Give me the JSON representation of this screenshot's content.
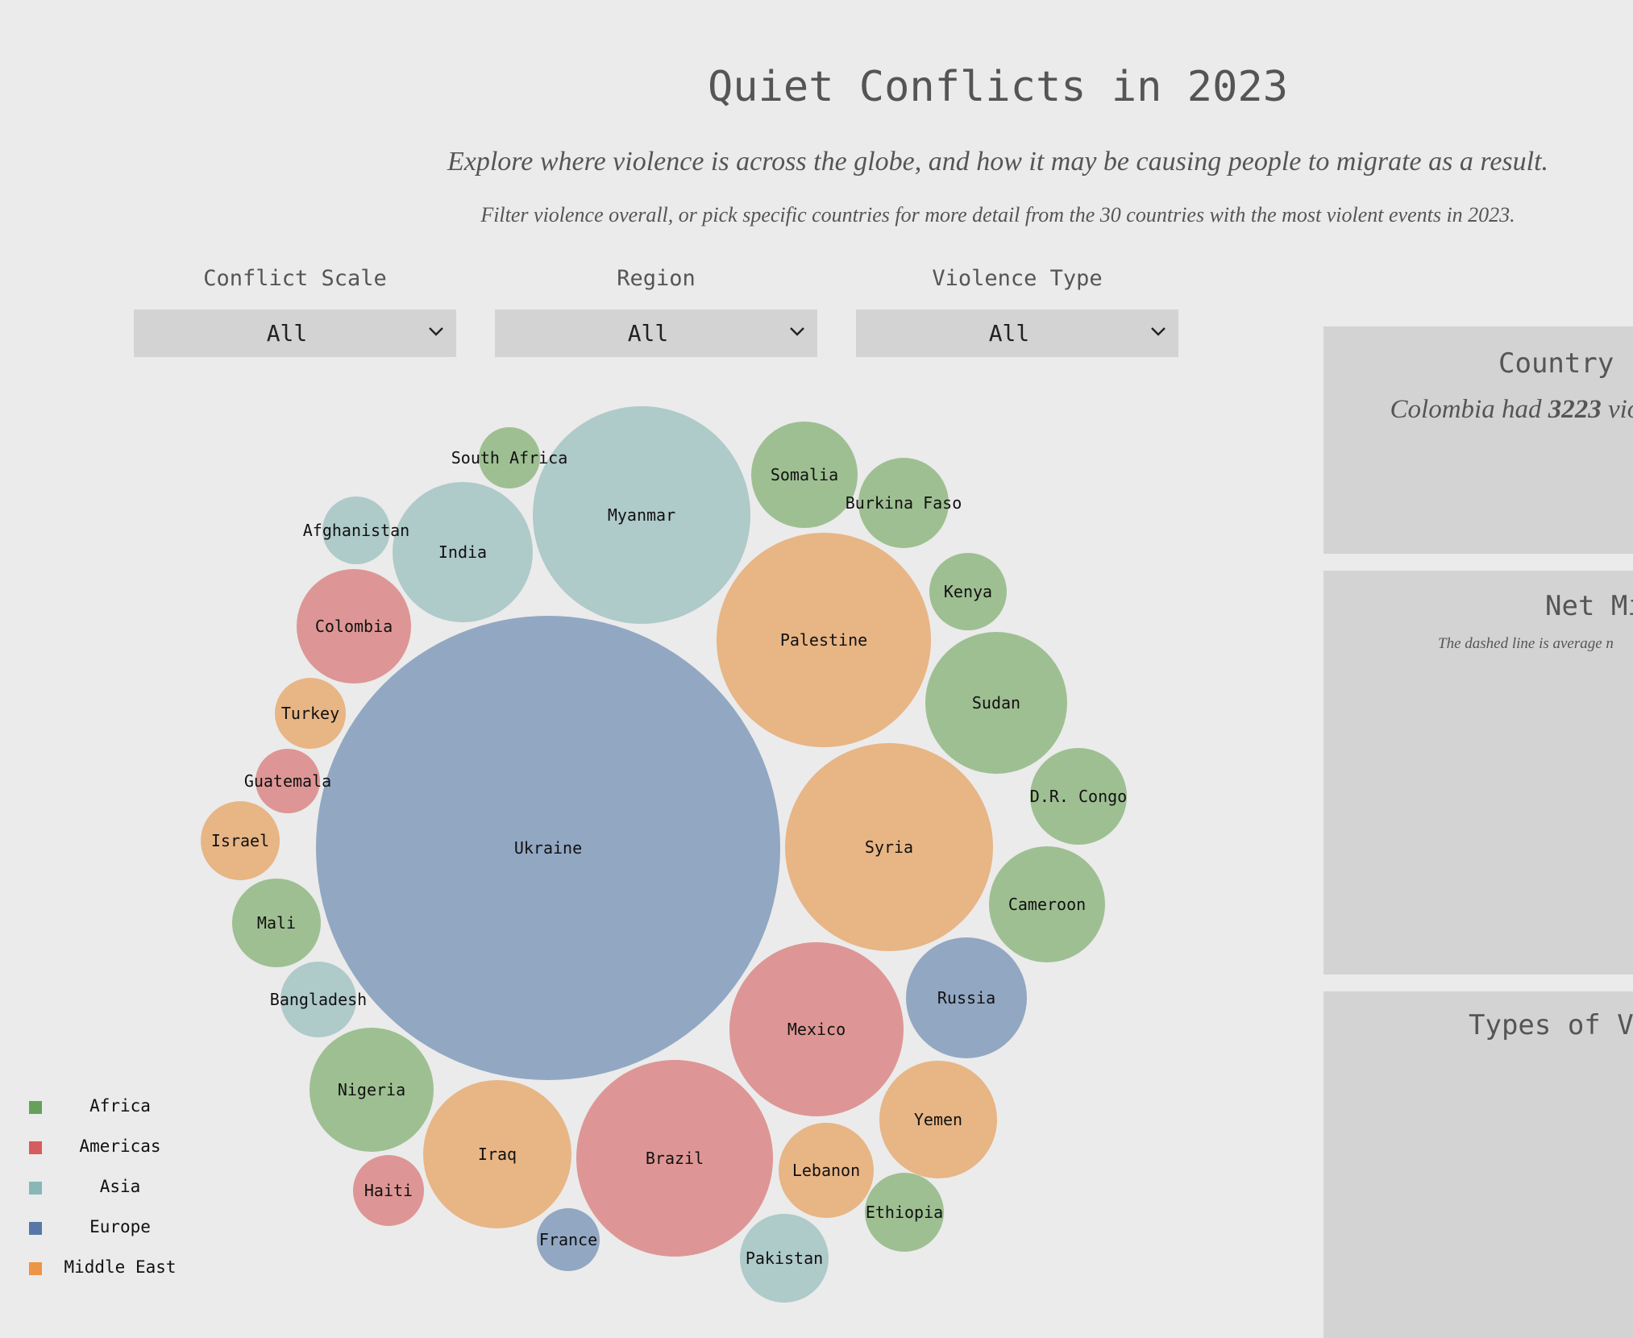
{
  "header": {
    "title": "Quiet Conflicts in 2023",
    "subtitle": "Explore where violence is across the globe, and how it may be causing people to migrate as a result.",
    "description": "Filter violence overall, or pick specific countries for more detail from the 30 countries with the most violent events in 2023."
  },
  "filters": [
    {
      "label": "Conflict Scale",
      "value": "All"
    },
    {
      "label": "Region",
      "value": "All"
    },
    {
      "label": "Violence Type",
      "value": "All"
    }
  ],
  "panels": {
    "country_info": {
      "title": "Country I",
      "text_before": "Colombia had ",
      "text_value": "3223",
      "text_after": " vio selec"
    },
    "net_migration": {
      "title": "Net Mi",
      "note": "The dashed line is average n"
    },
    "violence_types": {
      "title": "Types of Vi"
    }
  },
  "legend": [
    {
      "name": "Africa",
      "color": "#65a15a"
    },
    {
      "name": "Americas",
      "color": "#d65d5d"
    },
    {
      "name": "Asia",
      "color": "#87b8b7"
    },
    {
      "name": "Europe",
      "color": "#5877a6"
    },
    {
      "name": "Middle East",
      "color": "#ee9445"
    }
  ],
  "chart_data": {
    "type": "bubble",
    "bubble_colors": {
      "Africa": "#9ebf92",
      "Americas": "#dd9695",
      "Asia": "#aecac9",
      "Europe": "#92a7c2",
      "Middle East": "#e8b585"
    },
    "bubbles": [
      {
        "country": "Ukraine",
        "region": "Europe"
      },
      {
        "country": "Myanmar",
        "region": "Asia"
      },
      {
        "country": "Palestine",
        "region": "Middle East"
      },
      {
        "country": "Syria",
        "region": "Middle East"
      },
      {
        "country": "Brazil",
        "region": "Americas"
      },
      {
        "country": "Mexico",
        "region": "Americas"
      },
      {
        "country": "India",
        "region": "Asia"
      },
      {
        "country": "Iraq",
        "region": "Middle East"
      },
      {
        "country": "Sudan",
        "region": "Africa"
      },
      {
        "country": "Nigeria",
        "region": "Africa"
      },
      {
        "country": "Russia",
        "region": "Europe"
      },
      {
        "country": "Cameroon",
        "region": "Africa"
      },
      {
        "country": "Yemen",
        "region": "Middle East"
      },
      {
        "country": "Colombia",
        "region": "Americas"
      },
      {
        "country": "Somalia",
        "region": "Africa"
      },
      {
        "country": "Lebanon",
        "region": "Middle East"
      },
      {
        "country": "D.R. Congo",
        "region": "Africa"
      },
      {
        "country": "Burkina Faso",
        "region": "Africa"
      },
      {
        "country": "Mali",
        "region": "Africa"
      },
      {
        "country": "Pakistan",
        "region": "Asia"
      },
      {
        "country": "Turkey",
        "region": "Middle East"
      },
      {
        "country": "Kenya",
        "region": "Africa"
      },
      {
        "country": "Israel",
        "region": "Middle East"
      },
      {
        "country": "Ethiopia",
        "region": "Africa"
      },
      {
        "country": "Bangladesh",
        "region": "Asia"
      },
      {
        "country": "Afghanistan",
        "region": "Asia"
      },
      {
        "country": "Haiti",
        "region": "Americas"
      },
      {
        "country": "Guatemala",
        "region": "Americas"
      },
      {
        "country": "France",
        "region": "Europe"
      },
      {
        "country": "South Africa",
        "region": "Africa"
      }
    ]
  }
}
